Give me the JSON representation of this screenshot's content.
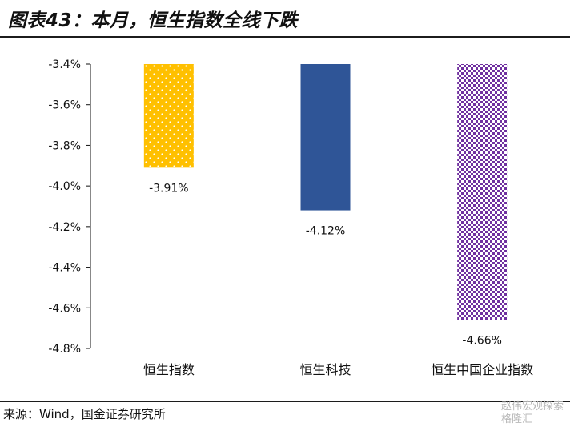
{
  "header": {
    "title": "图表43：本月，恒生指数全线下跌"
  },
  "footer": {
    "source": "来源：Wind，国金证券研究所",
    "watermark_lines": [
      "赵伟宏观探索",
      "格隆汇"
    ]
  },
  "chart_data": {
    "type": "bar",
    "title": "图表43：本月，恒生指数全线下跌",
    "xlabel": "",
    "ylabel": "",
    "categories": [
      "恒生指数",
      "恒生科技",
      "恒生中国企业指数"
    ],
    "values": [
      -3.91,
      -4.12,
      -4.66
    ],
    "data_labels": [
      "-3.91%",
      "-4.12%",
      "-4.66%"
    ],
    "ylim": [
      -4.8,
      -3.4
    ],
    "yticks": [
      -3.4,
      -3.6,
      -3.8,
      -4.0,
      -4.2,
      -4.4,
      -4.6,
      -4.8
    ],
    "ytick_labels": [
      "-3.4%",
      "-3.6%",
      "-3.8%",
      "-4.0%",
      "-4.2%",
      "-4.4%",
      "-4.6%",
      "-4.8%"
    ],
    "bar_colors": [
      "#FFC000",
      "#2F5597",
      "#7030A0"
    ],
    "bar_patterns": [
      "dots",
      "solid",
      "checker"
    ],
    "grid": false,
    "legend": "none"
  }
}
